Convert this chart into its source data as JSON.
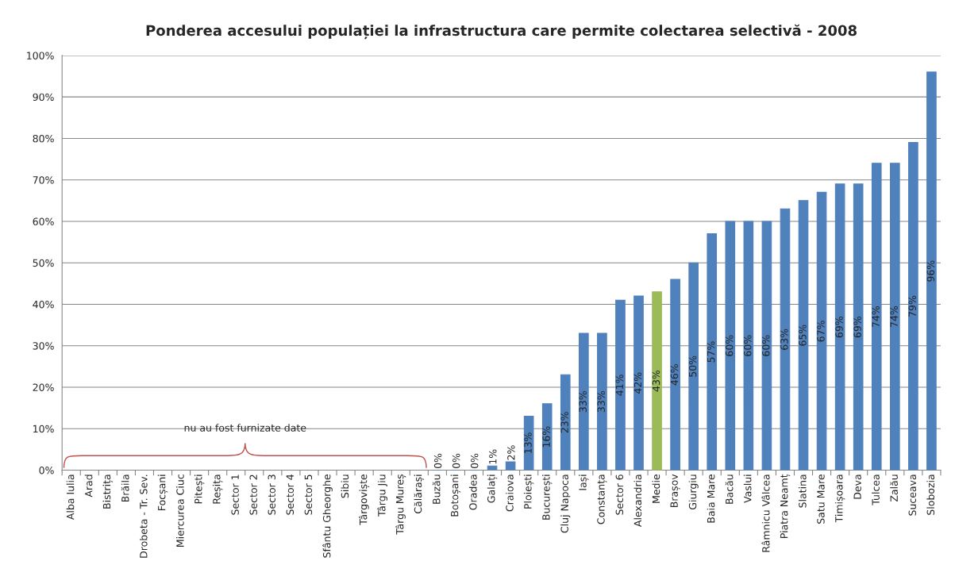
{
  "chart_data": {
    "type": "bar",
    "title": "Ponderea accesului populației la infrastructura care permite colectarea selectivă - 2008",
    "categories": [
      "Alba Iulia",
      "Arad",
      "Bistrița",
      "Brăila",
      "Drobeta - Tr. Sev.",
      "Focșani",
      "Miercurea Ciuc",
      "Pitești",
      "Reșița",
      "Sector 1",
      "Sector 2",
      "Sector 3",
      "Sector 4",
      "Sector 5",
      "Sfântu Gheorghe",
      "Sibiu",
      "Târgoviște",
      "Târgu Jiu",
      "Târgu Mureș",
      "Călărași",
      "Buzău",
      "Botoșani",
      "Oradea",
      "Galați",
      "Craiova",
      "Ploiești",
      "București",
      "Cluj Napoca",
      "Iași",
      "Constanța",
      "Sector 6",
      "Alexandria",
      "Medie",
      "Brașov",
      "Giurgiu",
      "Baia Mare",
      "Bacău",
      "Vaslui",
      "Râmnicu Vâlcea",
      "Piatra Neamț",
      "Slatina",
      "Satu Mare",
      "Timișoara",
      "Deva",
      "Tulcea",
      "Zalău",
      "Suceava",
      "Slobozia"
    ],
    "values": [
      null,
      null,
      null,
      null,
      null,
      null,
      null,
      null,
      null,
      null,
      null,
      null,
      null,
      null,
      null,
      null,
      null,
      null,
      null,
      null,
      0,
      0,
      0,
      1,
      2,
      13,
      16,
      23,
      33,
      33,
      41,
      42,
      43,
      46,
      50,
      57,
      60,
      60,
      60,
      63,
      65,
      67,
      69,
      69,
      74,
      74,
      79,
      96
    ],
    "colors": [
      "#4f81bd",
      "#4f81bd",
      "#4f81bd",
      "#4f81bd",
      "#4f81bd",
      "#4f81bd",
      "#4f81bd",
      "#4f81bd",
      "#4f81bd",
      "#4f81bd",
      "#4f81bd",
      "#4f81bd",
      "#4f81bd",
      "#4f81bd",
      "#4f81bd",
      "#4f81bd",
      "#4f81bd",
      "#4f81bd",
      "#4f81bd",
      "#4f81bd",
      "#4f81bd",
      "#4f81bd",
      "#4f81bd",
      "#4f81bd",
      "#4f81bd",
      "#4f81bd",
      "#4f81bd",
      "#4f81bd",
      "#4f81bd",
      "#4f81bd",
      "#4f81bd",
      "#4f81bd",
      "#9bbb59",
      "#4f81bd",
      "#4f81bd",
      "#4f81bd",
      "#4f81bd",
      "#4f81bd",
      "#4f81bd",
      "#4f81bd",
      "#4f81bd",
      "#4f81bd",
      "#4f81bd",
      "#4f81bd",
      "#4f81bd",
      "#4f81bd",
      "#4f81bd",
      "#4f81bd"
    ],
    "value_labels": [
      null,
      null,
      null,
      null,
      null,
      null,
      null,
      null,
      null,
      null,
      null,
      null,
      null,
      null,
      null,
      null,
      null,
      null,
      null,
      null,
      "0%",
      "0%",
      "0%",
      "1%",
      "2%",
      "13%",
      "16%",
      "23%",
      "33%",
      "33%",
      "41%",
      "42%",
      "43%",
      "46%",
      "50%",
      "57%",
      "60%",
      "60%",
      "60%",
      "63%",
      "65%",
      "67%",
      "69%",
      "69%",
      "74%",
      "74%",
      "79%",
      "96%"
    ],
    "ylim": [
      0,
      100
    ],
    "yticks": [
      {
        "value": 0,
        "label": "0%"
      },
      {
        "value": 10,
        "label": "10%"
      },
      {
        "value": 20,
        "label": "20%"
      },
      {
        "value": 30,
        "label": "30%"
      },
      {
        "value": 40,
        "label": "40%"
      },
      {
        "value": 50,
        "label": "50%"
      },
      {
        "value": 60,
        "label": "60%"
      },
      {
        "value": 70,
        "label": "70%"
      },
      {
        "value": 80,
        "label": "80%"
      },
      {
        "value": 90,
        "label": "90%"
      },
      {
        "value": 100,
        "label": "100%"
      }
    ],
    "grid": "y",
    "annotations": [
      "nu au fost furnizate date"
    ]
  }
}
